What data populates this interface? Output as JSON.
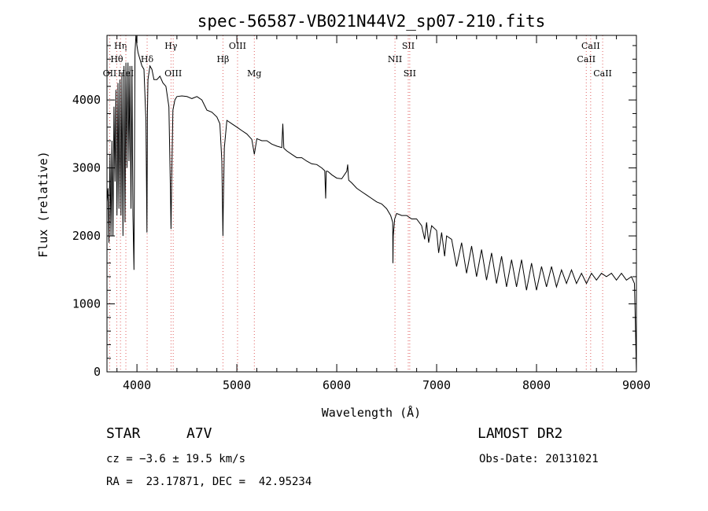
{
  "chart_data": {
    "type": "line",
    "title": "spec-56587-VB021N44V2_sp07-210.fits",
    "xlabel": "Wavelength (Å)",
    "ylabel": "Flux (relative)",
    "xlim": [
      3700,
      9000
    ],
    "ylim": [
      0,
      4950
    ],
    "x_ticks": [
      4000,
      5000,
      6000,
      7000,
      8000,
      9000
    ],
    "y_ticks": [
      0,
      1000,
      2000,
      3000,
      4000
    ],
    "grid": false,
    "line_color": "#000000",
    "marker_color": "#e06060",
    "lines": [
      {
        "label": "OII",
        "x": 3727,
        "row": 3
      },
      {
        "label": "Hθ",
        "x": 3798,
        "row": 2
      },
      {
        "label": "Hη",
        "x": 3835,
        "row": 1
      },
      {
        "label": "HeI",
        "x": 3889,
        "row": 3
      },
      {
        "label": "Hδ",
        "x": 4102,
        "row": 2
      },
      {
        "label": "Hγ",
        "x": 4341,
        "row": 1
      },
      {
        "label": "OIII",
        "x": 4363,
        "row": 3
      },
      {
        "label": "Hβ",
        "x": 4861,
        "row": 2
      },
      {
        "label": "OIII",
        "x": 5007,
        "row": 1
      },
      {
        "label": "Mg",
        "x": 5175,
        "row": 3
      },
      {
        "label": "NII",
        "x": 6583,
        "row": 2
      },
      {
        "label": "SII",
        "x": 6716,
        "row": 1
      },
      {
        "label": "SII",
        "x": 6731,
        "row": 3
      },
      {
        "label": "CaII",
        "x": 8498,
        "row": 2
      },
      {
        "label": "CaII",
        "x": 8542,
        "row": 1
      },
      {
        "label": "CaII",
        "x": 8662,
        "row": 3
      }
    ],
    "series": [
      {
        "x": [
          3700,
          3710,
          3720,
          3730,
          3740,
          3750,
          3760,
          3770,
          3780,
          3790,
          3800,
          3810,
          3820,
          3830,
          3840,
          3850,
          3860,
          3870,
          3880,
          3890,
          3900,
          3910,
          3920,
          3930,
          3940,
          3950,
          3960,
          3970,
          3980,
          3990,
          4000,
          4010,
          4020,
          4030,
          4050,
          4070,
          4090,
          4100,
          4105,
          4110,
          4130,
          4150,
          4170,
          4200,
          4230,
          4260,
          4290,
          4320,
          4335,
          4341,
          4347,
          4360,
          4380,
          4400,
          4450,
          4500,
          4550,
          4600,
          4650,
          4700,
          4750,
          4800,
          4830,
          4850,
          4858,
          4861,
          4864,
          4875,
          4900,
          4950,
          5000,
          5050,
          5100,
          5150,
          5175,
          5200,
          5250,
          5300,
          5350,
          5400,
          5450,
          5460,
          5470,
          5500,
          5550,
          5600,
          5650,
          5700,
          5750,
          5800,
          5850,
          5880,
          5889,
          5895,
          5910,
          5950,
          6000,
          6050,
          6100,
          6110,
          6115,
          6120,
          6150,
          6200,
          6250,
          6300,
          6350,
          6400,
          6450,
          6500,
          6540,
          6560,
          6563,
          6566,
          6580,
          6600,
          6650,
          6700,
          6750,
          6800,
          6850,
          6880,
          6900,
          6920,
          6950,
          7000,
          7020,
          7050,
          7080,
          7100,
          7150,
          7200,
          7250,
          7300,
          7350,
          7400,
          7450,
          7500,
          7550,
          7600,
          7650,
          7700,
          7750,
          7800,
          7850,
          7900,
          7950,
          8000,
          8050,
          8100,
          8150,
          8200,
          8250,
          8300,
          8350,
          8400,
          8450,
          8500,
          8550,
          8600,
          8650,
          8700,
          8750,
          8800,
          8850,
          8900,
          8950,
          8980,
          8990,
          9000
        ],
        "y": [
          2500,
          2700,
          1900,
          3200,
          2000,
          3400,
          2000,
          3900,
          2800,
          4150,
          2300,
          4250,
          2400,
          4300,
          2300,
          4400,
          2000,
          4500,
          2200,
          4550,
          3000,
          4550,
          3100,
          4500,
          2400,
          4500,
          2300,
          1500,
          4700,
          4950,
          4800,
          4700,
          4650,
          4600,
          4500,
          4450,
          3700,
          2050,
          3800,
          4300,
          4500,
          4450,
          4300,
          4300,
          4350,
          4250,
          4200,
          3900,
          2700,
          2100,
          2800,
          3850,
          4000,
          4050,
          4060,
          4050,
          4020,
          4050,
          4000,
          3850,
          3820,
          3750,
          3650,
          3100,
          2300,
          2000,
          2400,
          3300,
          3700,
          3650,
          3600,
          3550,
          3500,
          3420,
          3200,
          3430,
          3400,
          3400,
          3350,
          3320,
          3300,
          3650,
          3290,
          3250,
          3200,
          3150,
          3150,
          3100,
          3060,
          3050,
          3000,
          2960,
          2550,
          2950,
          2950,
          2900,
          2850,
          2840,
          2950,
          3050,
          2900,
          2820,
          2780,
          2700,
          2650,
          2600,
          2550,
          2500,
          2470,
          2400,
          2300,
          2200,
          1600,
          2000,
          2250,
          2330,
          2300,
          2300,
          2250,
          2250,
          2150,
          1950,
          2200,
          1900,
          2150,
          2080,
          1750,
          2050,
          1700,
          2000,
          1950,
          1550,
          1900,
          1450,
          1850,
          1400,
          1800,
          1350,
          1750,
          1300,
          1700,
          1250,
          1650,
          1250,
          1650,
          1200,
          1600,
          1200,
          1550,
          1250,
          1550,
          1250,
          1500,
          1300,
          1500,
          1300,
          1450,
          1300,
          1450,
          1350,
          1450,
          1400,
          1450,
          1350,
          1450,
          1350,
          1400,
          1300,
          700,
          0
        ]
      }
    ]
  },
  "info": {
    "obj_class": "STAR",
    "obj_subclass": "A7V",
    "survey": "LAMOST DR2",
    "redshift": "cz = −3.6 ± 19.5 km/s",
    "obs_date": "Obs-Date: 20131021",
    "coords": "RA =  23.17871, DEC =  42.95234"
  }
}
